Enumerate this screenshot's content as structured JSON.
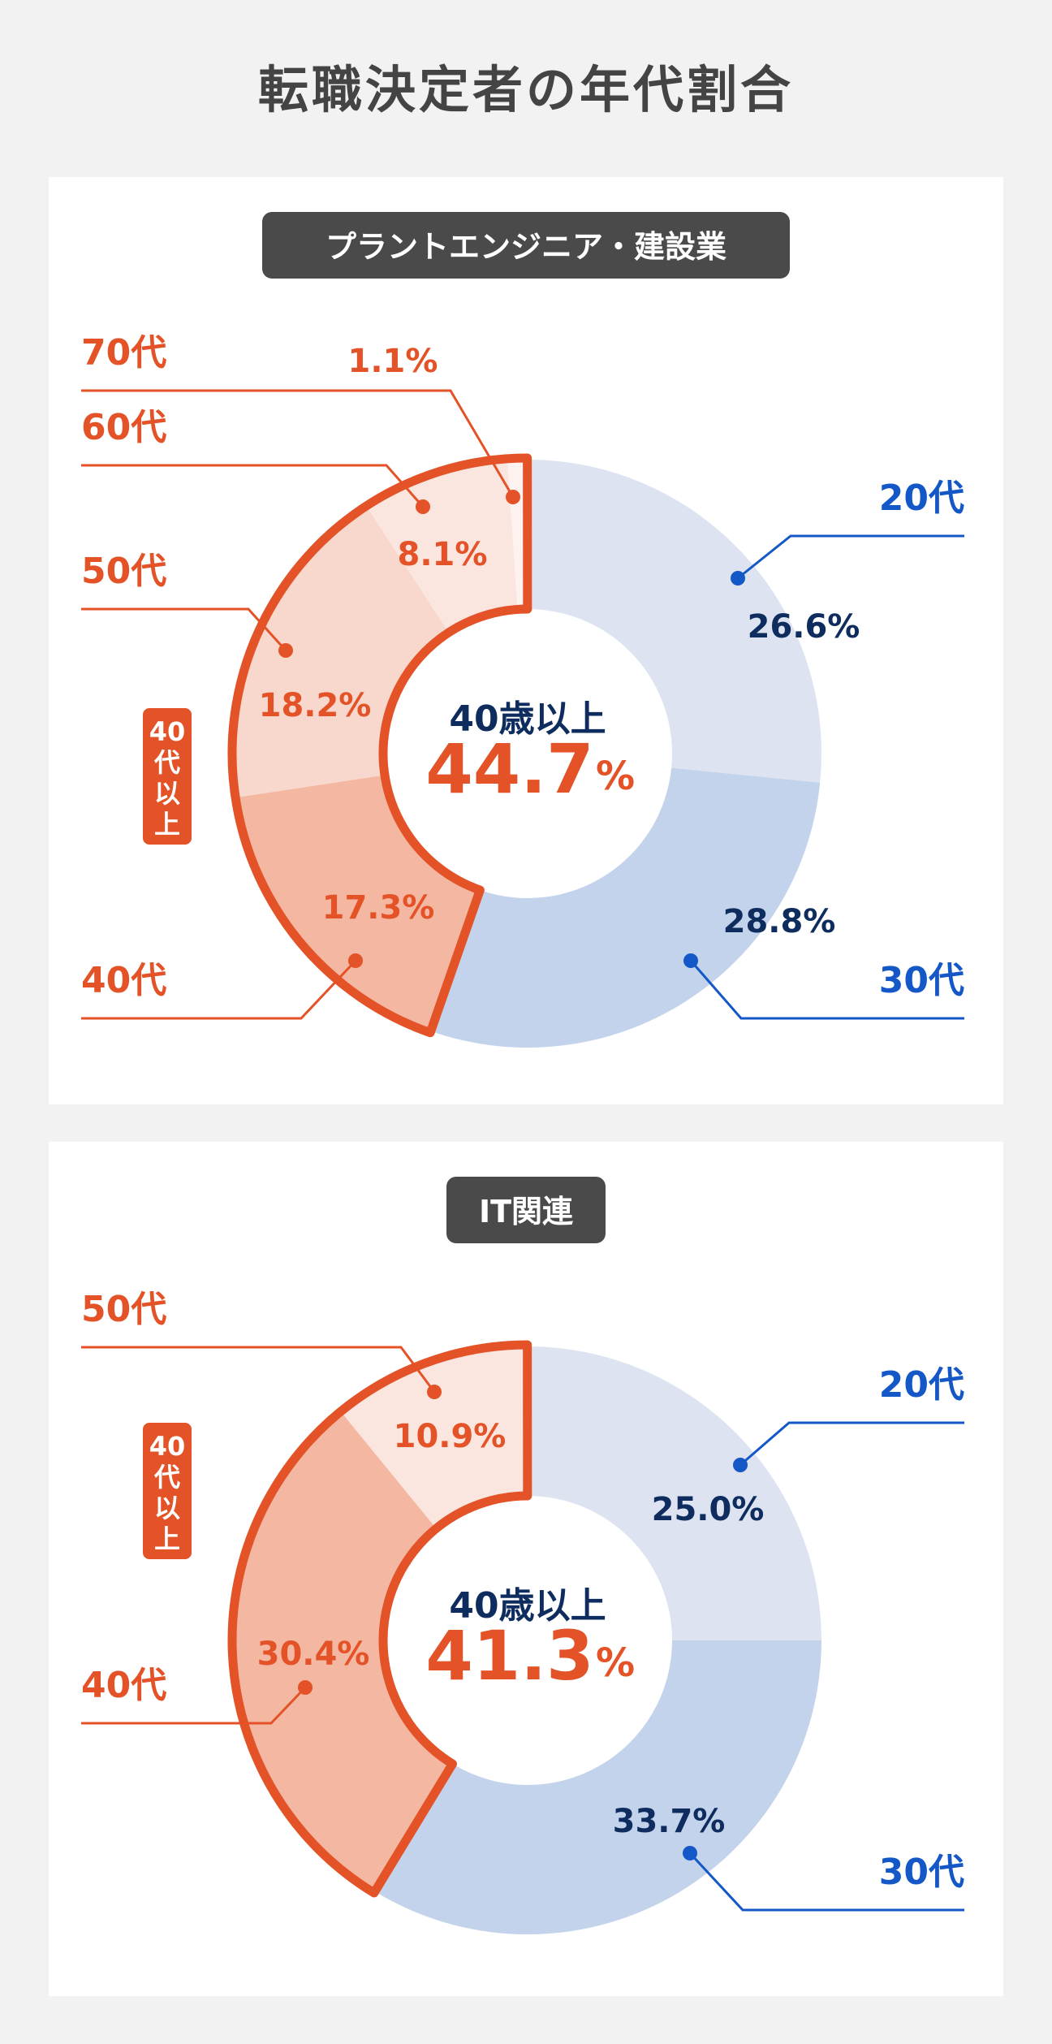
{
  "page_title": "転職決定者の年代割合",
  "colors": {
    "orange": "#e45227",
    "navy": "#0e2d5e",
    "blue": "#1457c7",
    "blue_light": "#dde3f1",
    "blue_mid": "#c3d3ec",
    "orange_70": "#fdf2ef",
    "orange_60": "#fbe5df",
    "orange_50": "#f8d7cc",
    "orange_40": "#f4b7a2",
    "badge_bg": "#4a4a4a"
  },
  "chart_data": [
    {
      "type": "pie",
      "title": "プラントエンジニア・建設業",
      "center": {
        "label": "40歳以上",
        "value": "44.7",
        "unit": "%"
      },
      "group_label": [
        "40",
        "代",
        "以",
        "上"
      ],
      "slices": [
        {
          "name": "20代",
          "value": 26.6,
          "label": "26.6%",
          "group": "under40",
          "color": "#dde3f1"
        },
        {
          "name": "30代",
          "value": 28.8,
          "label": "28.8%",
          "group": "under40",
          "color": "#c3d3ec"
        },
        {
          "name": "40代",
          "value": 17.3,
          "label": "17.3%",
          "group": "over40",
          "color": "#f4b7a2"
        },
        {
          "name": "50代",
          "value": 18.2,
          "label": "18.2%",
          "group": "over40",
          "color": "#f8d7cc"
        },
        {
          "name": "60代",
          "value": 8.1,
          "label": "8.1%",
          "group": "over40",
          "color": "#fbe5df"
        },
        {
          "name": "70代",
          "value": 1.1,
          "label": "1.1%",
          "group": "over40",
          "color": "#fdf2ef"
        }
      ]
    },
    {
      "type": "pie",
      "title": "IT関連",
      "center": {
        "label": "40歳以上",
        "value": "41.3",
        "unit": "%"
      },
      "group_label": [
        "40",
        "代",
        "以",
        "上"
      ],
      "slices": [
        {
          "name": "20代",
          "value": 25.0,
          "label": "25.0%",
          "group": "under40",
          "color": "#dde3f1"
        },
        {
          "name": "30代",
          "value": 33.7,
          "label": "33.7%",
          "group": "under40",
          "color": "#c3d3ec"
        },
        {
          "name": "40代",
          "value": 30.4,
          "label": "30.4%",
          "group": "over40",
          "color": "#f4b7a2"
        },
        {
          "name": "50代",
          "value": 10.9,
          "label": "10.9%",
          "group": "over40",
          "color": "#fbe5df"
        }
      ]
    }
  ]
}
